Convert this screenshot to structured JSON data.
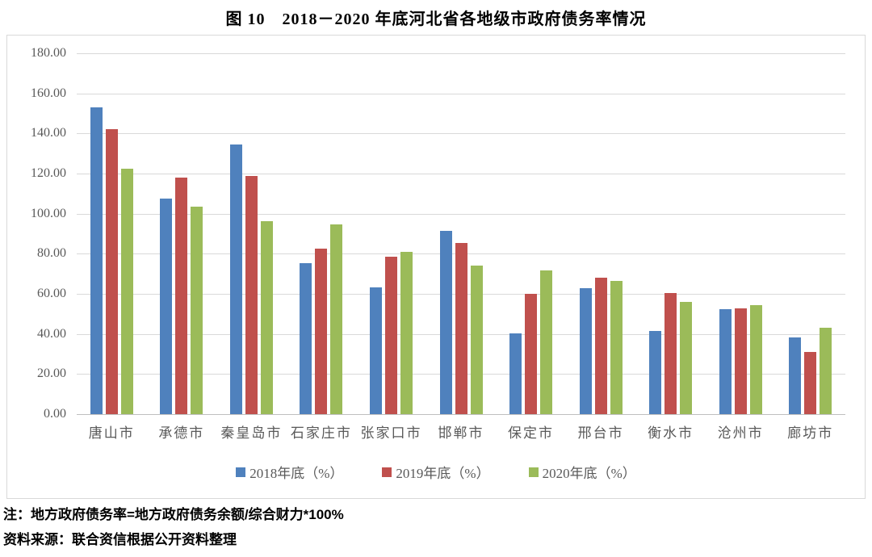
{
  "chart_data": {
    "type": "bar",
    "title": "图 10　2018－2020 年底河北省各地级市政府债务率情况",
    "categories": [
      "唐山市",
      "承德市",
      "秦皇岛市",
      "石家庄市",
      "张家口市",
      "邯郸市",
      "保定市",
      "邢台市",
      "衡水市",
      "沧州市",
      "廊坊市"
    ],
    "series": [
      {
        "name": "2018年底（%）",
        "color": "#4F81BD",
        "values": [
          152.9,
          107.7,
          134.6,
          75.5,
          63.3,
          91.3,
          40.3,
          62.8,
          41.5,
          52.5,
          38.4
        ]
      },
      {
        "name": "2019年底（%）",
        "color": "#C0504D",
        "values": [
          142.0,
          117.9,
          118.9,
          82.5,
          78.6,
          85.5,
          59.9,
          68.1,
          60.5,
          52.6,
          31.1
        ]
      },
      {
        "name": "2020年底（%）",
        "color": "#9BBB59",
        "values": [
          122.4,
          103.5,
          96.4,
          94.7,
          81.1,
          74.2,
          71.5,
          66.5,
          55.8,
          54.3,
          43.0
        ]
      }
    ],
    "ylim": [
      0,
      180
    ],
    "ytick_step": 20,
    "ytick_labels": [
      "180.00",
      "160.00",
      "140.00",
      "120.00",
      "100.00",
      "80.00",
      "60.00",
      "40.00",
      "20.00",
      "0.00"
    ],
    "xlabel": "",
    "ylabel": "",
    "grid": true,
    "legend_position": "bottom"
  },
  "notes": {
    "note": "注：地方政府债务率=地方政府债务余额/综合财力*100%",
    "source": "资料来源：联合资信根据公开资料整理"
  }
}
